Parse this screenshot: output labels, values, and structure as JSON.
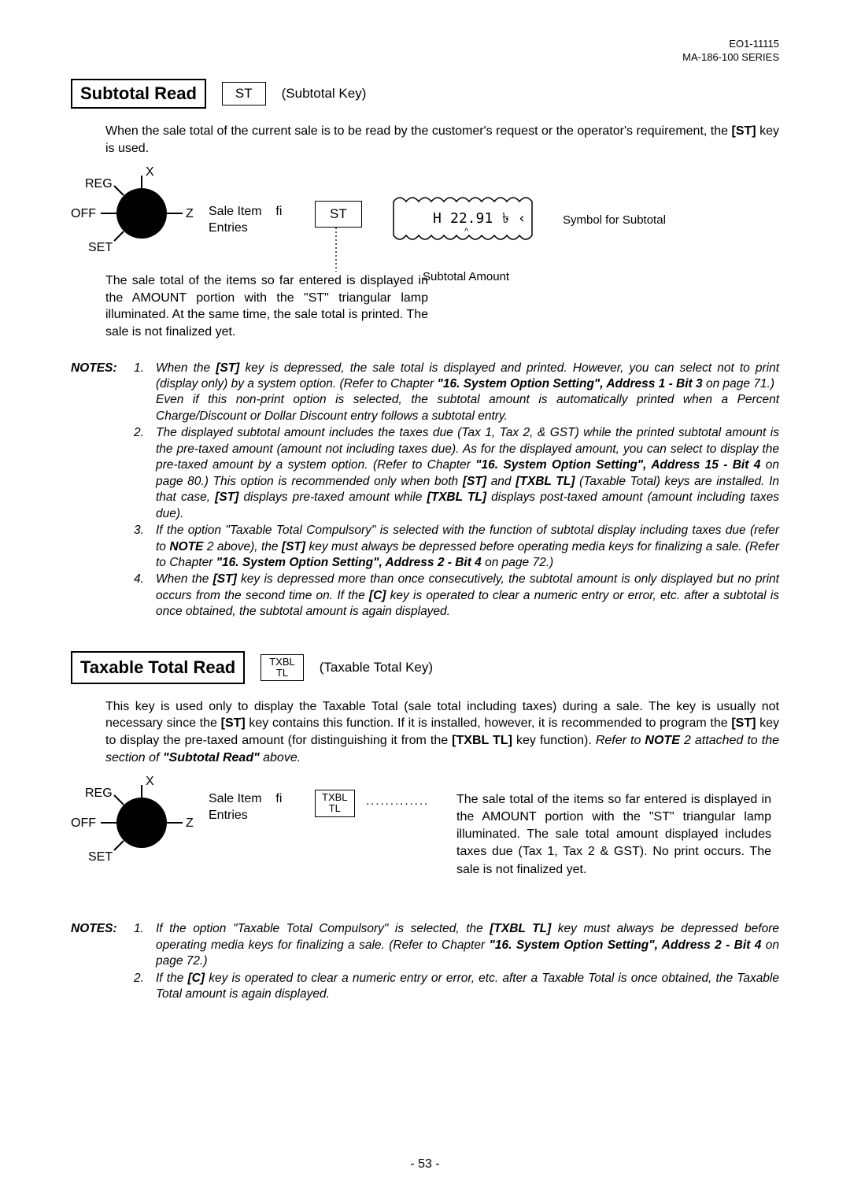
{
  "header": {
    "doc_id": "EO1-11115",
    "series": "MA-186-100 SERIES"
  },
  "section1": {
    "title": "Subtotal Read",
    "key_label": "ST",
    "key_desc": "(Subtotal Key)",
    "intro": "When the sale total of the current sale is to be read by the customer's request or the operator's requirement, the [ST] key is used.",
    "dial": {
      "x": "X",
      "reg": "REG",
      "off": "OFF",
      "z": "Z",
      "set": "SET"
    },
    "sale_item_1": "Sale Item",
    "sale_item_2": "Entries",
    "arrow_label": "fi",
    "st_key": "ST",
    "receipt_amount": "22.91",
    "symbol_label": "Symbol for Subtotal",
    "subtotal_amount_label": "Subtotal Amount",
    "explanation": "The sale total of the items so far entered is displayed in the AMOUNT portion with the \"ST\" triangular lamp illuminated. At the same time, the sale total is printed. The sale is not finalized yet."
  },
  "notes1": {
    "label": "NOTES:",
    "items": [
      {
        "num": "1.",
        "parts": [
          {
            "t": "When the ",
            "b": false
          },
          {
            "t": "[ST]",
            "b": true
          },
          {
            "t": " key is depressed, the sale total is displayed and printed. However, you can select not to print (display only) by a system option. (Refer to Chapter ",
            "b": false
          },
          {
            "t": "\"16. System Option Setting\", Address 1 - Bit 3",
            "b": true
          },
          {
            "t": " on page 71.)\nEven if this non-print option is selected, the subtotal amount is automatically printed when a Percent Charge/Discount or Dollar Discount entry follows a subtotal entry.",
            "b": false
          }
        ]
      },
      {
        "num": "2.",
        "parts": [
          {
            "t": "The displayed subtotal amount includes the taxes due (Tax 1, Tax 2, & GST) while the printed subtotal amount is the pre-taxed amount (amount not including taxes due). As for the displayed amount, you can select to display the pre-taxed amount by a system option. (Refer to Chapter ",
            "b": false
          },
          {
            "t": "\"16. System Option Setting\", Address 15 - Bit 4",
            "b": true
          },
          {
            "t": " on page 80.) This option is recommended only when both ",
            "b": false
          },
          {
            "t": "[ST]",
            "b": true
          },
          {
            "t": " and ",
            "b": false
          },
          {
            "t": "[TXBL TL]",
            "b": true
          },
          {
            "t": " (Taxable Total) keys are installed. In that case, ",
            "b": false
          },
          {
            "t": "[ST]",
            "b": true
          },
          {
            "t": " displays pre-taxed amount while ",
            "b": false
          },
          {
            "t": "[TXBL TL]",
            "b": true
          },
          {
            "t": " displays post-taxed amount (amount including taxes due).",
            "b": false
          }
        ]
      },
      {
        "num": "3.",
        "parts": [
          {
            "t": "If the option \"Taxable Total Compulsory\" is selected with the function of subtotal display including taxes due (refer to ",
            "b": false
          },
          {
            "t": "NOTE",
            "b": true
          },
          {
            "t": " 2 above), the ",
            "b": false
          },
          {
            "t": "[ST]",
            "b": true
          },
          {
            "t": " key must always be depressed before operating media keys for finalizing a sale. (Refer to Chapter ",
            "b": false
          },
          {
            "t": "\"16. System Option Setting\", Address 2 - Bit 4",
            "b": true
          },
          {
            "t": " on page 72.)",
            "b": false
          }
        ]
      },
      {
        "num": "4.",
        "parts": [
          {
            "t": "When the ",
            "b": false
          },
          {
            "t": "[ST]",
            "b": true
          },
          {
            "t": " key is depressed more than once consecutively, the subtotal amount is only displayed but no print occurs from the second time on. If the ",
            "b": false
          },
          {
            "t": "[C]",
            "b": true
          },
          {
            "t": " key is operated to clear a numeric entry or error, etc. after a subtotal is once obtained, the subtotal amount is again displayed.",
            "b": false
          }
        ]
      }
    ]
  },
  "section2": {
    "title": "Taxable Total Read",
    "key_line1": "TXBL",
    "key_line2": "TL",
    "key_desc": "(Taxable Total Key)",
    "intro_parts": [
      {
        "t": "This key is used only to display the Taxable Total (sale total including taxes) during a sale. The key is usually not necessary since the ",
        "b": false
      },
      {
        "t": "[ST]",
        "b": true
      },
      {
        "t": " key contains this function. If it is installed, however, it is recommended to program the ",
        "b": false
      },
      {
        "t": "[ST]",
        "b": true
      },
      {
        "t": " key to display the pre-taxed amount (for distinguishing it from the ",
        "b": false
      },
      {
        "t": "[TXBL TL]",
        "b": true
      },
      {
        "t": " key function). ",
        "b": false
      },
      {
        "t": "Refer to ",
        "b": false,
        "i": true
      },
      {
        "t": "NOTE",
        "b": true,
        "i": true
      },
      {
        "t": " 2 attached to the section of ",
        "b": false,
        "i": true
      },
      {
        "t": "\"Subtotal Read\"",
        "b": true,
        "i": true
      },
      {
        "t": " above.",
        "b": false,
        "i": true
      }
    ],
    "sale_item_1": "Sale Item",
    "sale_item_2": "Entries",
    "arrow_label": "fi",
    "dots": ".............",
    "txbl_explain": "The sale total of the items so far entered is displayed in the AMOUNT portion with the \"ST\" triangular lamp illuminated. The sale total amount displayed includes taxes due (Tax 1, Tax 2 & GST). No print occurs. The sale is not finalized yet."
  },
  "notes2": {
    "label": "NOTES:",
    "items": [
      {
        "num": "1.",
        "parts": [
          {
            "t": "If the option \"Taxable Total Compulsory\" is selected, the ",
            "b": false
          },
          {
            "t": "[TXBL TL]",
            "b": true
          },
          {
            "t": " key must always be depressed before operating media keys for finalizing a sale. (Refer to Chapter ",
            "b": false
          },
          {
            "t": "\"16. System Option Setting\", Address 2 - Bit 4",
            "b": true
          },
          {
            "t": " on page 72.)",
            "b": false
          }
        ]
      },
      {
        "num": "2.",
        "parts": [
          {
            "t": "If the ",
            "b": false
          },
          {
            "t": "[C]",
            "b": true
          },
          {
            "t": " key is operated to clear a numeric entry or error, etc. after a Taxable Total is once obtained, the Taxable Total amount is again displayed.",
            "b": false
          }
        ]
      }
    ]
  },
  "page_num": "- 53 -"
}
